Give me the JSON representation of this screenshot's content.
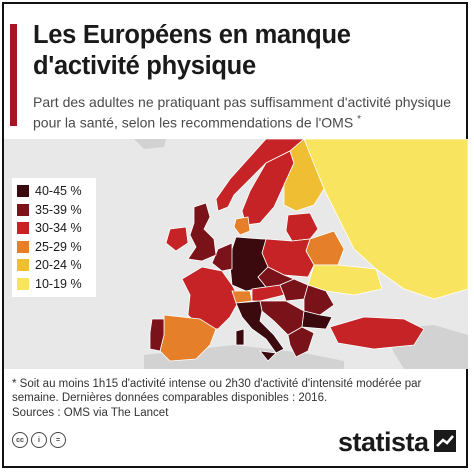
{
  "header": {
    "title": "Les Européens en manque d'activité physique",
    "subtitle": "Part des adultes ne pratiquant pas suffisamment d'activité physique pour la santé, selon les recommendations de l'OMS",
    "subtitle_mark": "*"
  },
  "legend": [
    {
      "label": "40-45 %",
      "color": "#3b0a0e"
    },
    {
      "label": "35-39 %",
      "color": "#7a1219"
    },
    {
      "label": "30-34 %",
      "color": "#c52325"
    },
    {
      "label": "25-29 %",
      "color": "#e57f2a"
    },
    {
      "label": "20-24 %",
      "color": "#efbe32"
    },
    {
      "label": "10-19 %",
      "color": "#f8e45e"
    }
  ],
  "colors": {
    "accent": "#a31621",
    "nodata": "#d2d2d2",
    "sea": "#e8e8e8",
    "border": "#ffffff"
  },
  "footer": {
    "note": "* Soit au moins 1h15 d'activité intense ou 2h30 d'activité d'intensité modérée par semaine. Dernières données comparables disponibles : 2016.",
    "source": "Sources : OMS via The Lancet",
    "cc_icons": [
      "cc-icon",
      "by-icon",
      "nd-icon"
    ],
    "brand": "statista"
  }
}
